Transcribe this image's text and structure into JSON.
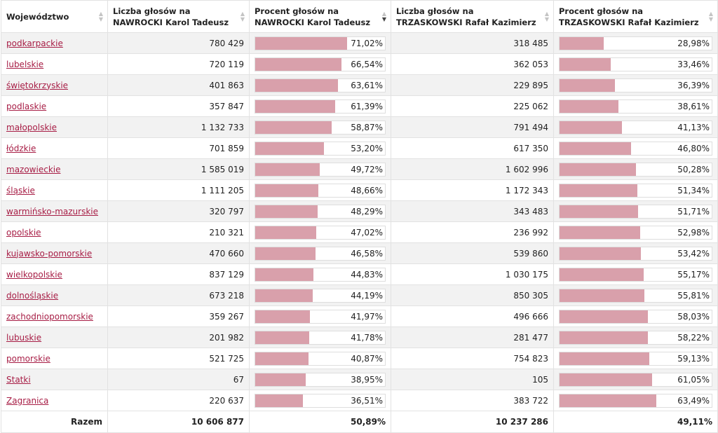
{
  "table": {
    "headers": [
      {
        "line1": "Województwo",
        "line2": ""
      },
      {
        "line1": "Liczba głosów na",
        "line2": "NAWROCKI Karol Tadeusz"
      },
      {
        "line1": "Procent głosów na",
        "line2": "NAWROCKI Karol Tadeusz"
      },
      {
        "line1": "Liczba głosów na",
        "line2": "TRZASKOWSKI Rafał Kazimierz"
      },
      {
        "line1": "Procent głosów na",
        "line2": "TRZASKOWSKI Rafał Kazimierz"
      }
    ],
    "sorted_column": 2,
    "sort_direction": "descending",
    "bar_color": "#d9a0ab",
    "link_color": "#a71d45",
    "rows": [
      {
        "name": "podkarpackie",
        "n_votes": "780 429",
        "n_pct": "71,02%",
        "n_frac": 0.7102,
        "t_votes": "318 485",
        "t_pct": "28,98%",
        "t_frac": 0.2898
      },
      {
        "name": "lubelskie",
        "n_votes": "720 119",
        "n_pct": "66,54%",
        "n_frac": 0.6654,
        "t_votes": "362 053",
        "t_pct": "33,46%",
        "t_frac": 0.3346
      },
      {
        "name": "świętokrzyskie",
        "n_votes": "401 863",
        "n_pct": "63,61%",
        "n_frac": 0.6361,
        "t_votes": "229 895",
        "t_pct": "36,39%",
        "t_frac": 0.3639
      },
      {
        "name": "podlaskie",
        "n_votes": "357 847",
        "n_pct": "61,39%",
        "n_frac": 0.6139,
        "t_votes": "225 062",
        "t_pct": "38,61%",
        "t_frac": 0.3861
      },
      {
        "name": "małopolskie",
        "n_votes": "1 132 733",
        "n_pct": "58,87%",
        "n_frac": 0.5887,
        "t_votes": "791 494",
        "t_pct": "41,13%",
        "t_frac": 0.4113
      },
      {
        "name": "łódzkie",
        "n_votes": "701 859",
        "n_pct": "53,20%",
        "n_frac": 0.532,
        "t_votes": "617 350",
        "t_pct": "46,80%",
        "t_frac": 0.468
      },
      {
        "name": "mazowieckie",
        "n_votes": "1 585 019",
        "n_pct": "49,72%",
        "n_frac": 0.4972,
        "t_votes": "1 602 996",
        "t_pct": "50,28%",
        "t_frac": 0.5028
      },
      {
        "name": "śląskie",
        "n_votes": "1 111 205",
        "n_pct": "48,66%",
        "n_frac": 0.4866,
        "t_votes": "1 172 343",
        "t_pct": "51,34%",
        "t_frac": 0.5134
      },
      {
        "name": "warmińsko-mazurskie",
        "n_votes": "320 797",
        "n_pct": "48,29%",
        "n_frac": 0.4829,
        "t_votes": "343 483",
        "t_pct": "51,71%",
        "t_frac": 0.5171
      },
      {
        "name": "opolskie",
        "n_votes": "210 321",
        "n_pct": "47,02%",
        "n_frac": 0.4702,
        "t_votes": "236 992",
        "t_pct": "52,98%",
        "t_frac": 0.5298
      },
      {
        "name": "kujawsko-pomorskie",
        "n_votes": "470 660",
        "n_pct": "46,58%",
        "n_frac": 0.4658,
        "t_votes": "539 860",
        "t_pct": "53,42%",
        "t_frac": 0.5342
      },
      {
        "name": "wielkopolskie",
        "n_votes": "837 129",
        "n_pct": "44,83%",
        "n_frac": 0.4483,
        "t_votes": "1 030 175",
        "t_pct": "55,17%",
        "t_frac": 0.5517
      },
      {
        "name": "dolnośląskie",
        "n_votes": "673 218",
        "n_pct": "44,19%",
        "n_frac": 0.4419,
        "t_votes": "850 305",
        "t_pct": "55,81%",
        "t_frac": 0.5581
      },
      {
        "name": "zachodniopomorskie",
        "n_votes": "359 267",
        "n_pct": "41,97%",
        "n_frac": 0.4197,
        "t_votes": "496 666",
        "t_pct": "58,03%",
        "t_frac": 0.5803
      },
      {
        "name": "lubuskie",
        "n_votes": "201 982",
        "n_pct": "41,78%",
        "n_frac": 0.4178,
        "t_votes": "281 477",
        "t_pct": "58,22%",
        "t_frac": 0.5822
      },
      {
        "name": "pomorskie",
        "n_votes": "521 725",
        "n_pct": "40,87%",
        "n_frac": 0.4087,
        "t_votes": "754 823",
        "t_pct": "59,13%",
        "t_frac": 0.5913
      },
      {
        "name": "Statki",
        "n_votes": "67",
        "n_pct": "38,95%",
        "n_frac": 0.3895,
        "t_votes": "105",
        "t_pct": "61,05%",
        "t_frac": 0.6105
      },
      {
        "name": "Zagranica",
        "n_votes": "220 637",
        "n_pct": "36,51%",
        "n_frac": 0.3651,
        "t_votes": "383 722",
        "t_pct": "63,49%",
        "t_frac": 0.6349
      }
    ],
    "footer": {
      "label": "Razem",
      "n_votes": "10 606 877",
      "n_pct": "50,89%",
      "t_votes": "10 237 286",
      "t_pct": "49,11%"
    }
  }
}
